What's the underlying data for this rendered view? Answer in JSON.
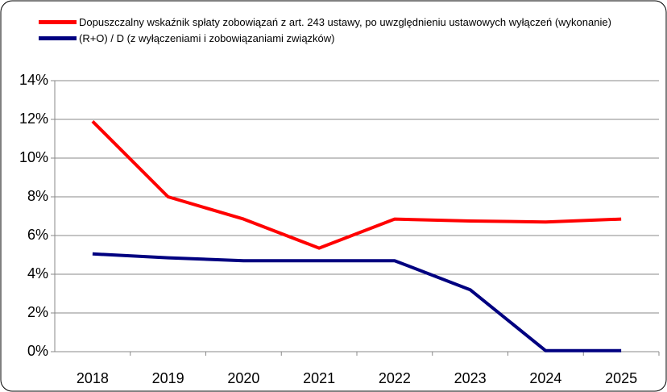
{
  "chart_data": {
    "type": "line",
    "categories": [
      "2018",
      "2019",
      "2020",
      "2021",
      "2022",
      "2023",
      "2024",
      "2025"
    ],
    "series": [
      {
        "name": "Dopuszczalny wskaźnik spłaty zobowiązań z art. 243 ustawy, po uwzględnieniu ustawowych wyłączeń (wykonanie)",
        "color": "#ff0000",
        "values": [
          11.9,
          8.0,
          6.85,
          5.35,
          6.85,
          6.75,
          6.7,
          6.85
        ]
      },
      {
        "name": "(R+O) / D (z wyłączeniami i zobowiązaniami związków)",
        "color": "#000080",
        "values": [
          5.05,
          4.85,
          4.7,
          4.7,
          4.7,
          3.2,
          0.05,
          0.05
        ]
      }
    ],
    "ylim": [
      0,
      14
    ],
    "yticks": [
      {
        "value": 0,
        "label": "0%"
      },
      {
        "value": 2,
        "label": "2%"
      },
      {
        "value": 4,
        "label": "4%"
      },
      {
        "value": 6,
        "label": "6%"
      },
      {
        "value": 8,
        "label": "8%"
      },
      {
        "value": 10,
        "label": "10%"
      },
      {
        "value": 12,
        "label": "12%"
      },
      {
        "value": 14,
        "label": "14%"
      }
    ],
    "grid": true
  }
}
